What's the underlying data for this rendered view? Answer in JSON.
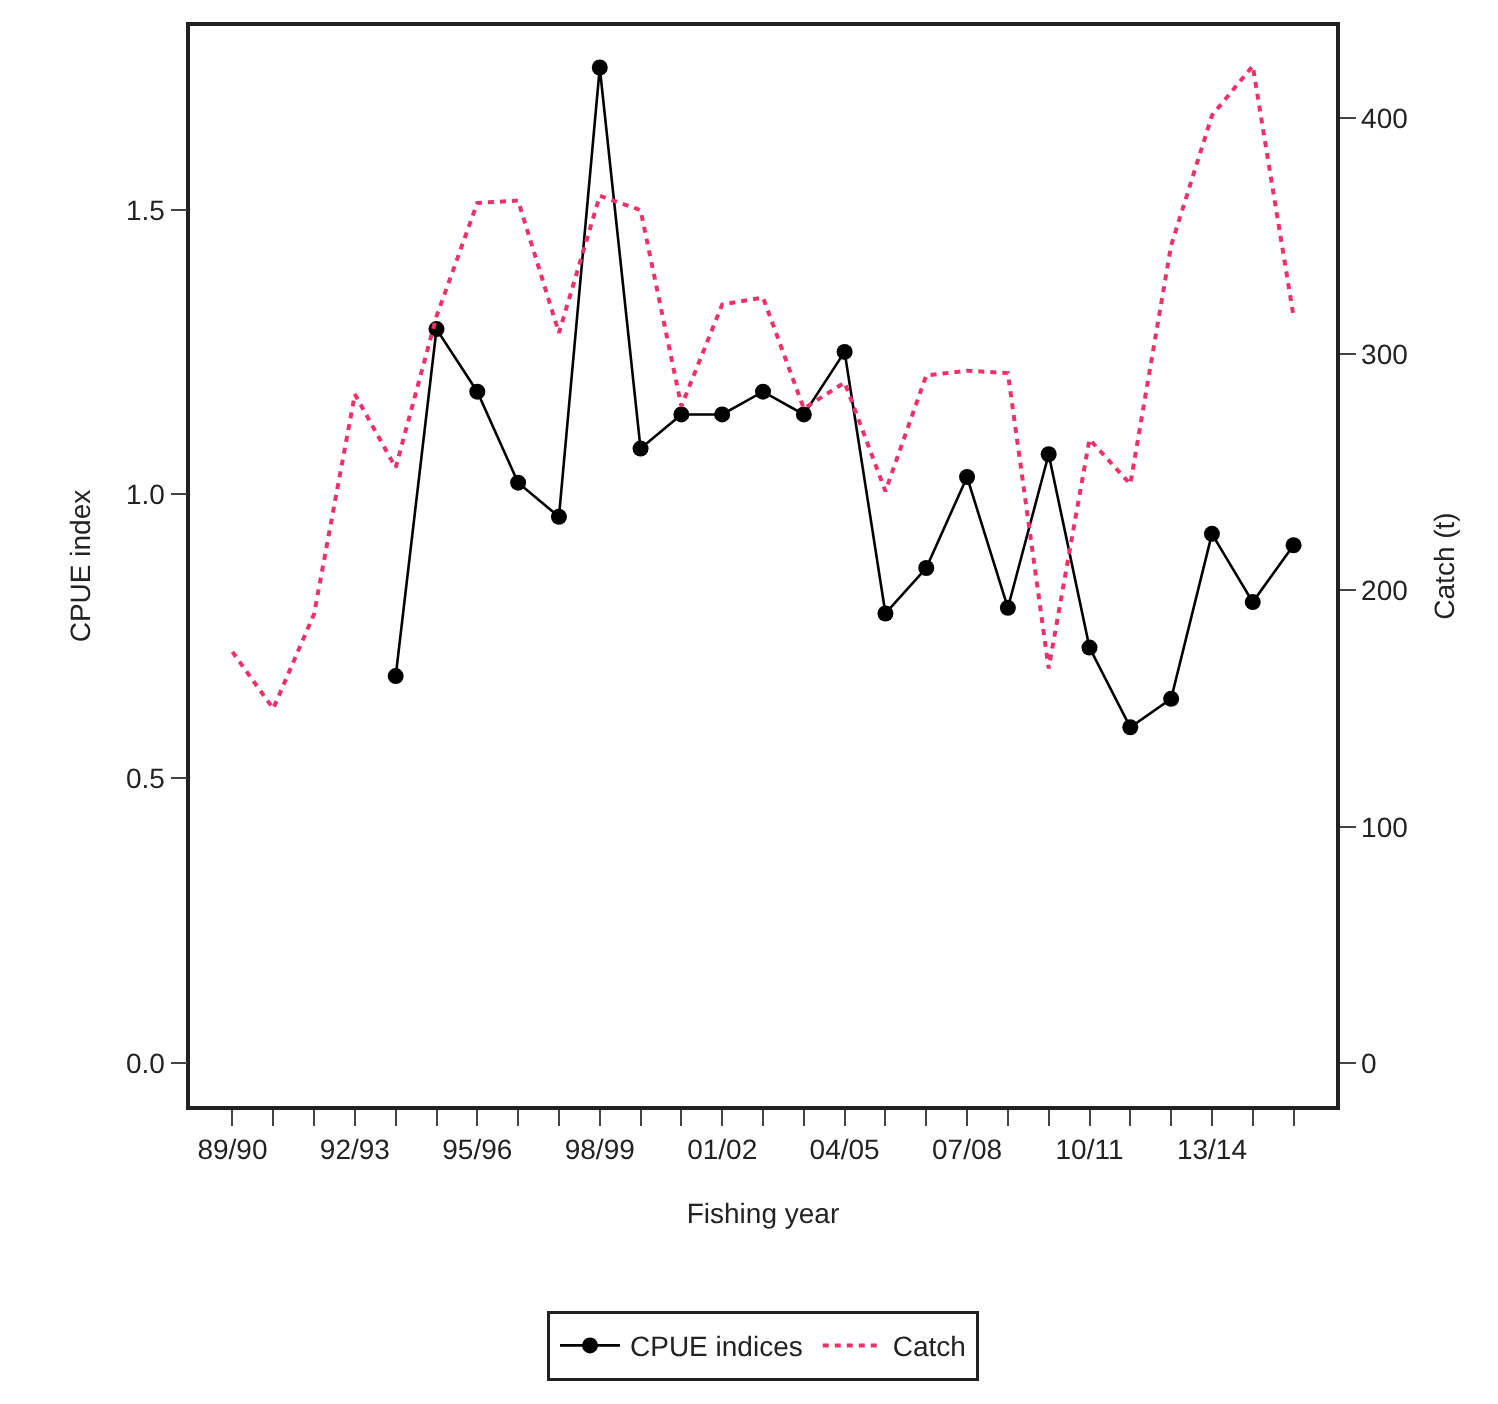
{
  "chart_data": {
    "type": "line",
    "xlabel": "Fishing year",
    "ylabel": "CPUE index",
    "y2label": "Catch (t)",
    "categories": [
      "89/90",
      null,
      null,
      "92/93",
      null,
      null,
      "95/96",
      null,
      null,
      "98/99",
      null,
      null,
      "01/02",
      null,
      null,
      "04/05",
      null,
      null,
      "07/08",
      null,
      null,
      "10/11",
      null,
      null,
      "13/14",
      null,
      null
    ],
    "series": [
      {
        "name": "CPUE indices",
        "color": "#000000",
        "marker": "circle",
        "line_style": "solid",
        "values": [
          null,
          null,
          null,
          null,
          0.68,
          1.29,
          1.18,
          1.02,
          0.96,
          1.75,
          1.08,
          1.14,
          1.14,
          1.18,
          1.14,
          1.25,
          0.79,
          0.87,
          1.03,
          0.8,
          1.07,
          0.73,
          0.59,
          0.64,
          0.93,
          0.81,
          0.91
        ]
      },
      {
        "name": "Catch",
        "color": "#f0306a",
        "marker": "none",
        "line_style": "dotted",
        "axis": "y2",
        "values": [
          174,
          150,
          190,
          283,
          252,
          316,
          364,
          365,
          309,
          367,
          361,
          278,
          321,
          324,
          277,
          288,
          242,
          291,
          293,
          292,
          167,
          264,
          245,
          346,
          401,
          422,
          316
        ]
      }
    ],
    "ylim": [
      -0.076,
      1.823
    ],
    "yticks": [
      {
        "value": 0,
        "label": "0.0"
      },
      {
        "value": 0.5,
        "label": "0.5"
      },
      {
        "value": 1,
        "label": "1.0"
      },
      {
        "value": 1.5,
        "label": "1.5"
      }
    ],
    "y2lim": [
      -18.2,
      438.9
    ],
    "y2ticks": [
      0,
      100,
      200,
      300,
      400
    ],
    "legend": "bottom"
  }
}
